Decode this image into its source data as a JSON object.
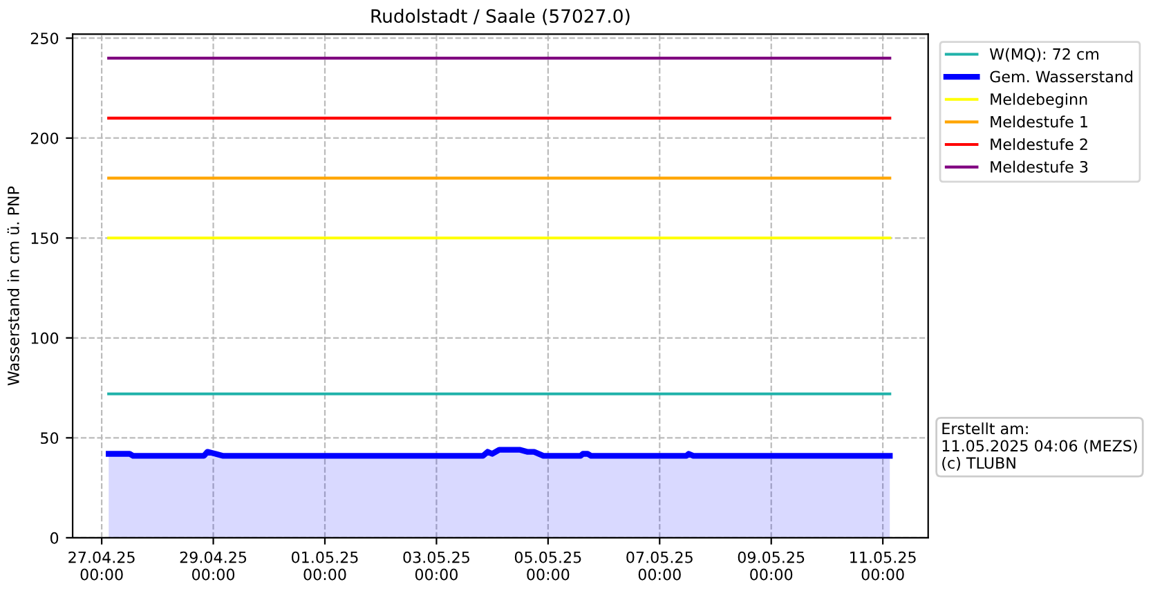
{
  "chart_data": {
    "type": "line",
    "title": "Rudolstadt / Saale (57027.0)",
    "ylabel": "Wasserstand in cm ü. PNP",
    "series": [
      {
        "name": "W(MQ): 72 cm",
        "color": "#20b2aa",
        "x": [
          "2025-04-27T03:00",
          "2025-05-11T03:00"
        ],
        "values": [
          72,
          72
        ]
      },
      {
        "name": "Gem. Wasserstand",
        "type": "area",
        "color": "#0000ff",
        "x": [
          "2025-04-27T03:00",
          "2025-04-27T12:00",
          "2025-04-27T13:30",
          "2025-04-28T20:00",
          "2025-04-28T21:30",
          "2025-04-29T01:00",
          "2025-04-29T04:00",
          "2025-05-03T20:00",
          "2025-05-03T22:00",
          "2025-05-04T00:00",
          "2025-05-04T03:00",
          "2025-05-04T12:00",
          "2025-05-04T15:00",
          "2025-05-04T18:00",
          "2025-05-04T22:00",
          "2025-05-05T14:00",
          "2025-05-05T15:00",
          "2025-05-05T17:00",
          "2025-05-05T18:30",
          "2025-05-07T11:30",
          "2025-05-07T12:30",
          "2025-05-07T14:30",
          "2025-05-11T03:00"
        ],
        "values": [
          42,
          42,
          41,
          41,
          43,
          42,
          41,
          41,
          43,
          42,
          44,
          44,
          43,
          43,
          41,
          41,
          42,
          42,
          41,
          41,
          42,
          41,
          41
        ]
      },
      {
        "name": "Meldebeginn",
        "color": "#ffff00",
        "x": [
          "2025-04-27T03:00",
          "2025-05-11T03:00"
        ],
        "values": [
          150,
          150
        ]
      },
      {
        "name": "Meldestufe 1",
        "color": "#ffa500",
        "x": [
          "2025-04-27T03:00",
          "2025-05-11T03:00"
        ],
        "values": [
          180,
          180
        ]
      },
      {
        "name": "Meldestufe 2",
        "color": "#ff0000",
        "x": [
          "2025-04-27T03:00",
          "2025-05-11T03:00"
        ],
        "values": [
          210,
          210
        ]
      },
      {
        "name": "Meldestufe 3",
        "color": "#800080",
        "x": [
          "2025-04-27T03:00",
          "2025-05-11T03:00"
        ],
        "values": [
          240,
          240
        ]
      }
    ],
    "xlim": [
      "2025-04-26T11:30",
      "2025-05-11T19:30"
    ],
    "xticks": [
      {
        "value": "2025-04-27",
        "label": "27.04.25\n00:00"
      },
      {
        "value": "2025-04-29",
        "label": "29.04.25\n00:00"
      },
      {
        "value": "2025-05-01",
        "label": "01.05.25\n00:00"
      },
      {
        "value": "2025-05-03",
        "label": "03.05.25\n00:00"
      },
      {
        "value": "2025-05-05",
        "label": "05.05.25\n00:00"
      },
      {
        "value": "2025-05-07",
        "label": "07.05.25\n00:00"
      },
      {
        "value": "2025-05-09",
        "label": "09.05.25\n00:00"
      },
      {
        "value": "2025-05-11",
        "label": "11.05.25\n00:00"
      }
    ],
    "ylim": [
      0,
      252
    ],
    "yticks": [
      0,
      50,
      100,
      150,
      200,
      250
    ],
    "grid": true,
    "line_style": "solid",
    "marker": "none",
    "legend": "top right",
    "annotations": [
      "Erstellt am:\n11.05.2025 04:06 (MEZS)\n(c) TLUBN"
    ]
  }
}
